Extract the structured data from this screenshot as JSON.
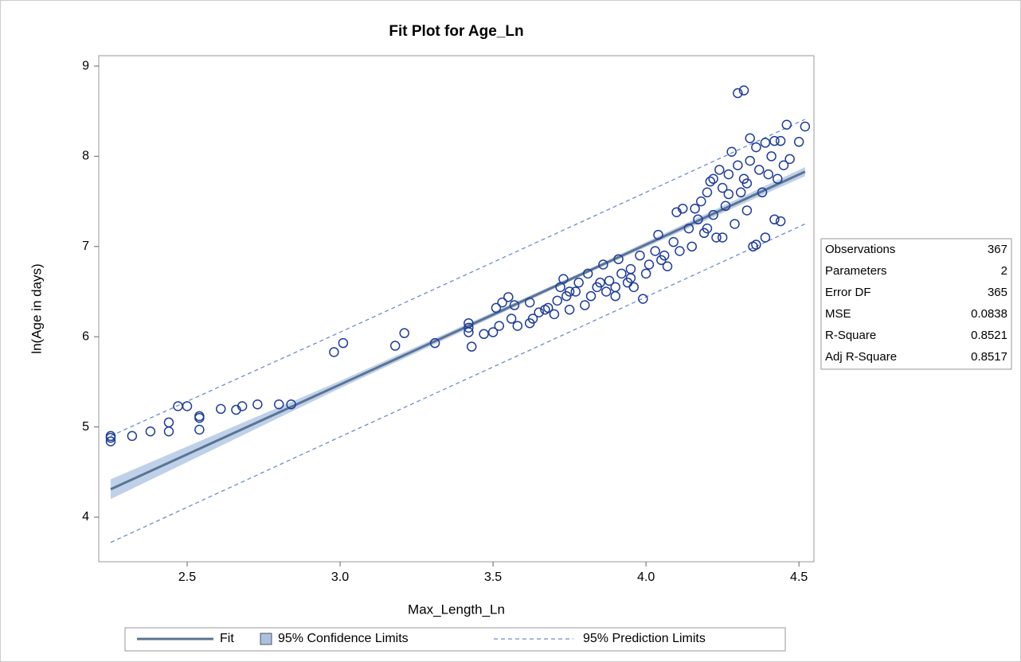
{
  "chart_data": {
    "type": "scatter",
    "title": "Fit Plot for Age_Ln",
    "xlabel": "Max_Length_Ln",
    "ylabel": "ln(Age in days)",
    "xlim": [
      2.211,
      4.549
    ],
    "ylim": [
      3.506,
      9.115
    ],
    "xticks": [
      2.5,
      {
        "value": 3,
        "label": "3.0"
      },
      3.5,
      {
        "value": 4,
        "label": "4.0"
      },
      4.5
    ],
    "yticks": [
      4,
      5,
      6,
      7,
      8,
      9
    ],
    "points": {
      "color": "#1f3d99",
      "x": [
        2.25,
        2.25,
        2.25,
        2.32,
        2.38,
        2.44,
        2.44,
        2.47,
        2.5,
        2.54,
        2.54,
        2.54,
        2.61,
        2.66,
        2.68,
        2.73,
        2.8,
        2.84,
        2.98,
        3.01,
        3.18,
        3.21,
        3.31,
        3.42,
        3.42,
        3.42,
        3.43,
        3.47,
        3.5,
        3.51,
        3.52,
        3.53,
        3.55,
        3.56,
        3.57,
        3.58,
        3.62,
        3.62,
        3.63,
        3.65,
        3.67,
        3.7,
        3.71,
        3.72,
        3.73,
        3.74,
        3.75,
        3.77,
        3.78,
        3.8,
        3.81,
        3.82,
        3.84,
        3.86,
        3.87,
        3.88,
        3.9,
        3.91,
        3.92,
        3.94,
        3.95,
        3.96,
        3.98,
        3.99,
        4.0,
        4.01,
        4.03,
        4.04,
        4.05,
        4.07,
        4.09,
        4.1,
        4.11,
        4.12,
        4.14,
        4.15,
        4.16,
        4.17,
        4.18,
        4.19,
        4.2,
        4.21,
        4.22,
        4.23,
        4.24,
        4.25,
        4.26,
        4.27,
        4.28,
        4.29,
        4.3,
        4.3,
        4.32,
        4.31,
        4.32,
        4.33,
        4.34,
        4.34,
        4.35,
        4.36,
        4.36,
        4.37,
        4.38,
        4.39,
        4.39,
        4.4,
        4.41,
        4.42,
        4.42,
        4.43,
        4.44,
        4.44,
        4.45,
        4.46,
        4.47,
        4.5,
        4.52,
        4.25,
        4.22,
        4.27,
        4.2,
        4.33,
        3.85,
        3.95,
        3.75,
        3.68,
        3.9,
        4.06
      ],
      "y": [
        4.84,
        4.88,
        4.9,
        4.9,
        4.95,
        4.95,
        5.05,
        5.23,
        5.23,
        4.97,
        5.1,
        5.12,
        5.2,
        5.19,
        5.23,
        5.25,
        5.25,
        5.25,
        5.83,
        5.93,
        5.9,
        6.04,
        5.93,
        6.15,
        6.1,
        6.05,
        5.89,
        6.03,
        6.05,
        6.32,
        6.12,
        6.38,
        6.44,
        6.2,
        6.35,
        6.12,
        6.15,
        6.38,
        6.2,
        6.27,
        6.3,
        6.25,
        6.4,
        6.55,
        6.64,
        6.45,
        6.3,
        6.5,
        6.6,
        6.35,
        6.7,
        6.45,
        6.55,
        6.8,
        6.5,
        6.62,
        6.45,
        6.86,
        6.7,
        6.6,
        6.75,
        6.55,
        6.9,
        6.42,
        6.7,
        6.8,
        6.95,
        7.13,
        6.85,
        6.78,
        7.05,
        7.38,
        6.95,
        7.42,
        7.2,
        7.0,
        7.42,
        7.3,
        7.5,
        7.15,
        7.6,
        7.72,
        7.35,
        7.1,
        7.85,
        7.65,
        7.45,
        7.8,
        8.05,
        7.25,
        7.9,
        8.7,
        8.73,
        7.6,
        7.75,
        7.4,
        8.2,
        7.95,
        7.0,
        8.1,
        7.02,
        7.85,
        7.6,
        7.1,
        8.15,
        7.8,
        8.0,
        7.3,
        8.17,
        7.75,
        8.17,
        7.28,
        7.9,
        8.35,
        7.97,
        8.16,
        8.33,
        7.1,
        7.75,
        7.58,
        7.2,
        7.7,
        6.6,
        6.65,
        6.5,
        6.32,
        6.55,
        6.9
      ]
    },
    "fit": {
      "name": "Fit",
      "color": "#5b7394",
      "x": [
        2.25,
        3.0,
        3.8,
        4.52
      ],
      "y": [
        4.31,
        5.47,
        6.71,
        7.83
      ]
    },
    "confidence": {
      "name": "95% Confidence Limits",
      "color": "#a9c1e0",
      "x": [
        2.25,
        3.0,
        3.8,
        4.52
      ],
      "lower": [
        4.2,
        5.43,
        6.69,
        7.78
      ],
      "upper": [
        4.42,
        5.51,
        6.73,
        7.88
      ]
    },
    "prediction": {
      "name": "95% Prediction Limits",
      "color": "#6d8ccc",
      "x": [
        2.25,
        3.0,
        3.8,
        4.52
      ],
      "lower": [
        3.72,
        4.89,
        6.13,
        7.25
      ],
      "upper": [
        4.9,
        6.05,
        7.29,
        8.41
      ]
    },
    "statistics": {
      "labels": [
        "Observations",
        "Parameters",
        "Error DF",
        "MSE",
        "R-Square",
        "Adj R-Square"
      ],
      "values": [
        367,
        2,
        365,
        0.0838,
        0.8521,
        0.8517
      ]
    }
  }
}
